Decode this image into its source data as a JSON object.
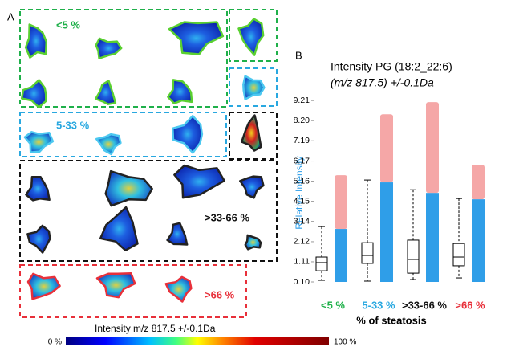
{
  "panel_a": {
    "label": "A",
    "groups": [
      "<5 %",
      "5-33 %",
      ">33-66 %",
      ">66 %"
    ],
    "colorbar_title": "Intensity  m/z 817.5 +/-0.1Da",
    "colorbar_min": "0 %",
    "colorbar_max": "100 %"
  },
  "chart_data": {
    "type": "box",
    "panel_label": "B",
    "title": "Intensity  PG (18:2_22:6)",
    "subtitle": "(m/z 817.5) +/-0.1Da",
    "y_label": "Relative Intensity",
    "x_label": "% of steatosis",
    "categories": [
      "<5 %",
      "5-33 %",
      ">33-66 %",
      ">66 %"
    ],
    "category_colors": [
      "#1fb04a",
      "#29a8e0",
      "#111111",
      "#e8303a"
    ],
    "boxes": [
      {
        "min": 0.18,
        "q1": 0.66,
        "median": 1.07,
        "q3": 1.35,
        "max": 2.88
      },
      {
        "min": 0.14,
        "q1": 1.03,
        "median": 1.43,
        "q3": 2.07,
        "max": 5.22
      },
      {
        "min": 0.22,
        "q1": 0.54,
        "median": 1.23,
        "q3": 2.2,
        "max": 4.73
      },
      {
        "min": 0.3,
        "q1": 0.91,
        "median": 1.35,
        "q3": 2.03,
        "max": 4.29
      }
    ],
    "points_max": [
      2.76,
      5.1,
      4.57,
      4.25
    ],
    "outliers_max": [
      5.46,
      8.52,
      9.13,
      5.98
    ],
    "points_color": "#2f9ee8",
    "outliers_color": "#f28a8a",
    "ylim": [
      0.1,
      9.5
    ],
    "yticks": [
      {
        "value": 0.1,
        "label": "0.10"
      },
      1.11,
      2.12,
      3.14,
      4.15,
      5.16,
      6.17,
      7.19,
      {
        "value": 8.2,
        "label": "8.20"
      },
      9.21
    ]
  }
}
